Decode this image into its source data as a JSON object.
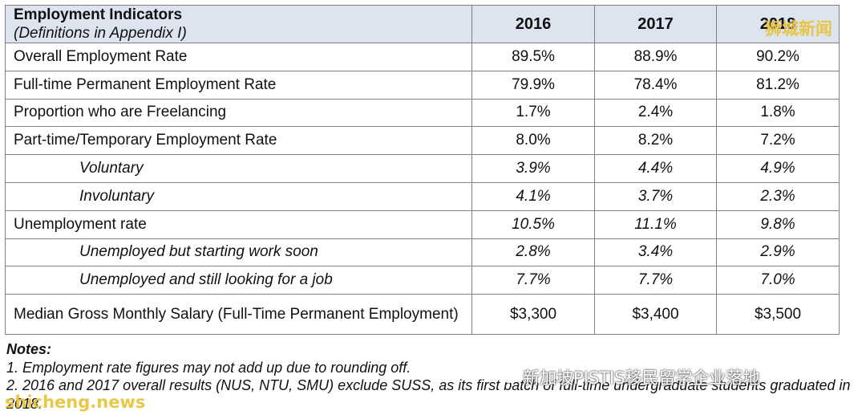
{
  "table": {
    "header": {
      "title": "Employment Indicators",
      "subtitle": "(Definitions in Appendix I)",
      "years": [
        "2016",
        "2017",
        "2018"
      ]
    },
    "rows": [
      {
        "label": "Overall Employment Rate",
        "values": [
          "89.5%",
          "88.9%",
          "90.2%"
        ]
      },
      {
        "label": "Full-time Permanent Employment Rate",
        "values": [
          "79.9%",
          "78.4%",
          "81.2%"
        ]
      },
      {
        "label": "Proportion who are Freelancing",
        "values": [
          "1.7%",
          "2.4%",
          "1.8%"
        ]
      },
      {
        "label": "Part-time/Temporary Employment Rate",
        "values": [
          "8.0%",
          "8.2%",
          "7.2%"
        ]
      },
      {
        "label": "Voluntary",
        "values": [
          "3.9%",
          "4.4%",
          "4.9%"
        ]
      },
      {
        "label": "Involuntary",
        "values": [
          "4.1%",
          "3.7%",
          "2.3%"
        ]
      },
      {
        "label": "Unemployment rate",
        "values": [
          "10.5%",
          "11.1%",
          "9.8%"
        ]
      },
      {
        "label": "Unemployed but starting work soon",
        "values": [
          "2.8%",
          "3.4%",
          "2.9%"
        ]
      },
      {
        "label": "Unemployed and still looking for a job",
        "values": [
          "7.7%",
          "7.7%",
          "7.0%"
        ]
      },
      {
        "label": "Median Gross Monthly Salary (Full-Time Permanent Employment)",
        "values": [
          "$3,300",
          "$3,400",
          "$3,500"
        ]
      }
    ]
  },
  "notes": {
    "title": "Notes:",
    "items": [
      "1.  Employment rate figures may not add up due to rounding off.",
      "2. 2016 and 2017 overall results (NUS, NTU, SMU) exclude SUSS, as its first batch of full-time undergraduate students graduated in 2018."
    ]
  },
  "watermarks": {
    "top_right": "狮城新闻",
    "bottom_left": "shicheng.news",
    "wechat": "新加坡PISTIS移民留学企业落地",
    "color": "#e8c33a"
  }
}
